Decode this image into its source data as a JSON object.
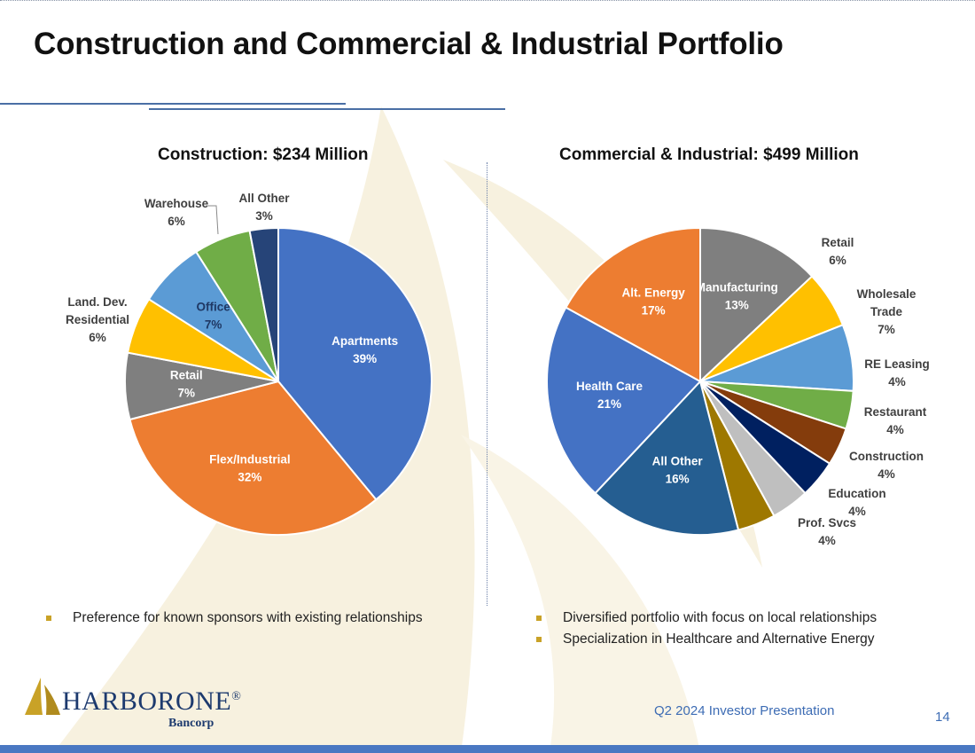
{
  "page": {
    "title": "Construction and Commercial & Industrial Portfolio",
    "footer": "Q2 2024 Investor Presentation",
    "page_number": "14",
    "logo": {
      "name_first": "HARBOR",
      "name_second": "ONE",
      "mark": "®",
      "sub": "Bancorp"
    }
  },
  "colors": {
    "title": "#111111",
    "accent_blue": "#4a78c2",
    "bullet_gold": "#c9a227",
    "logo_navy": "#1d3a6e"
  },
  "chart_data": [
    {
      "type": "pie",
      "title": "Construction:  $234 Million",
      "slices": [
        {
          "label": "Apartments",
          "value": 39,
          "display": "39%",
          "color": "#4472C4",
          "label_inside": true
        },
        {
          "label": "Flex/Industrial",
          "value": 32,
          "display": "32%",
          "color": "#ED7D31",
          "label_inside": true
        },
        {
          "label": "Retail",
          "value": 7,
          "display": "7%",
          "color": "#7F7F7F",
          "label_inside": true
        },
        {
          "label": "Land. Dev. Residential",
          "value": 6,
          "display": "6%",
          "color": "#FFC000",
          "label_inside": false
        },
        {
          "label": "Office",
          "value": 7,
          "display": "7%",
          "color": "#5B9BD5",
          "label_inside": true
        },
        {
          "label": "Warehouse",
          "value": 6,
          "display": "6%",
          "color": "#70AD47",
          "label_inside": false
        },
        {
          "label": "All Other",
          "value": 3,
          "display": "3%",
          "color": "#264478",
          "label_inside": false
        }
      ],
      "bullets": [
        "Preference for known sponsors with existing relationships"
      ]
    },
    {
      "type": "pie",
      "title": "Commercial & Industrial:  $499 Million",
      "slices": [
        {
          "label": "Manufacturing",
          "value": 13,
          "display": "13%",
          "color": "#7F7F7F",
          "label_inside": true
        },
        {
          "label": "Retail",
          "value": 6,
          "display": "6%",
          "color": "#FFC000",
          "label_inside": false
        },
        {
          "label": "Wholesale Trade",
          "value": 7,
          "display": "7%",
          "color": "#5B9BD5",
          "label_inside": false
        },
        {
          "label": "RE Leasing",
          "value": 4,
          "display": "4%",
          "color": "#70AD47",
          "label_inside": false
        },
        {
          "label": "Restaurant",
          "value": 4,
          "display": "4%",
          "color": "#843C0C",
          "label_inside": false
        },
        {
          "label": "Construction",
          "value": 4,
          "display": "4%",
          "color": "#002060",
          "label_inside": false
        },
        {
          "label": "Education",
          "value": 4,
          "display": "4%",
          "color": "#BFBFBF",
          "label_inside": false
        },
        {
          "label": "Prof. Svcs",
          "value": 4,
          "display": "4%",
          "color": "#9E7800",
          "label_inside": false
        },
        {
          "label": "All Other",
          "value": 16,
          "display": "16%",
          "color": "#255E91",
          "label_inside": true
        },
        {
          "label": "Health Care",
          "value": 21,
          "display": "21%",
          "color": "#4472C4",
          "label_inside": true
        },
        {
          "label": "Alt. Energy",
          "value": 17,
          "display": "17%",
          "color": "#ED7D31",
          "label_inside": true
        }
      ],
      "bullets": [
        "Diversified portfolio with focus on local relationships",
        "Specialization in Healthcare and Alternative Energy"
      ]
    }
  ]
}
